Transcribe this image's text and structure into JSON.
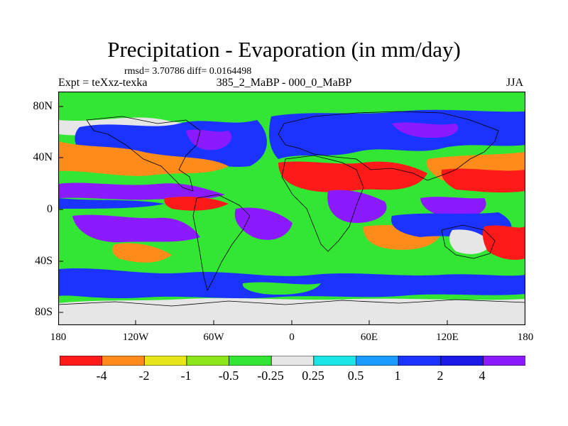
{
  "figure": {
    "title": "Precipitation - Evaporation (in mm/day)",
    "stats": "rmsd= 3.70786 diff= 0.0164498",
    "expt": "Expt = teXxz-texka",
    "period": "385_2_MaBP - 000_0_MaBP",
    "season": "JJA"
  },
  "axes": {
    "y_ticks": [
      "80N",
      "40N",
      "0",
      "40S",
      "80S"
    ],
    "x_ticks": [
      "180",
      "120W",
      "60W",
      "0",
      "60E",
      "120E",
      "180"
    ]
  },
  "colorbar": {
    "labels": [
      "-4",
      "-2",
      "-1",
      "-0.5",
      "-0.25",
      "0.25",
      "0.5",
      "1",
      "2",
      "4"
    ],
    "colors": [
      "#ff1a1a",
      "#ff8c1a",
      "#e6e61a",
      "#8ce61a",
      "#33e633",
      "#e6e6e6",
      "#1ae6e6",
      "#1a9cff",
      "#1a33ff",
      "#1a1ae6",
      "#8c1aff"
    ]
  },
  "map_colors": {
    "strong_neg": "#ff1a1a",
    "neg": "#ff8c1a",
    "weak_neg": "#e6e61a",
    "slight_neg": "#8ce61a",
    "near_zero_neg": "#33e633",
    "neutral": "#e6e6e6",
    "slight_pos": "#1ae6e6",
    "weak_pos": "#1a9cff",
    "pos": "#1a33ff",
    "strong_pos": "#1a1ae6",
    "very_strong_pos": "#8c1aff"
  }
}
